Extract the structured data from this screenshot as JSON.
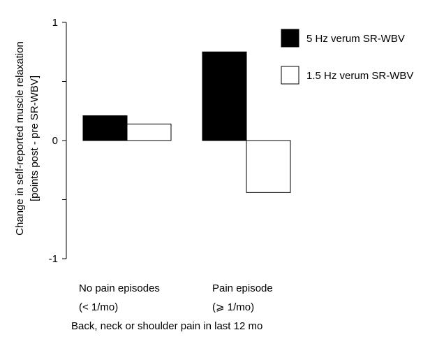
{
  "chart_data": {
    "type": "bar",
    "title": "",
    "categories": [
      [
        "No pain episodes",
        "(< 1/mo)"
      ],
      [
        "Pain episode",
        "(⩾ 1/mo)"
      ]
    ],
    "xlabel": "Back, neck or shoulder pain in last 12 mo",
    "ylabel": [
      "Change in self-reported muscle relaxation",
      "[points post - pre SR-WBV]"
    ],
    "ylim": [
      -1,
      1
    ],
    "yticks": [
      1,
      0,
      -1
    ],
    "yticks_minor": [
      0.5,
      -0.5
    ],
    "grid": false,
    "legend_position": "top-right",
    "series": [
      {
        "name": "5 Hz verum SR-WBV",
        "values": [
          0.21,
          0.75
        ],
        "color": "#000000"
      },
      {
        "name": "1.5 Hz verum SR-WBV",
        "values": [
          0.14,
          -0.44
        ],
        "color": "#ffffff"
      }
    ]
  }
}
